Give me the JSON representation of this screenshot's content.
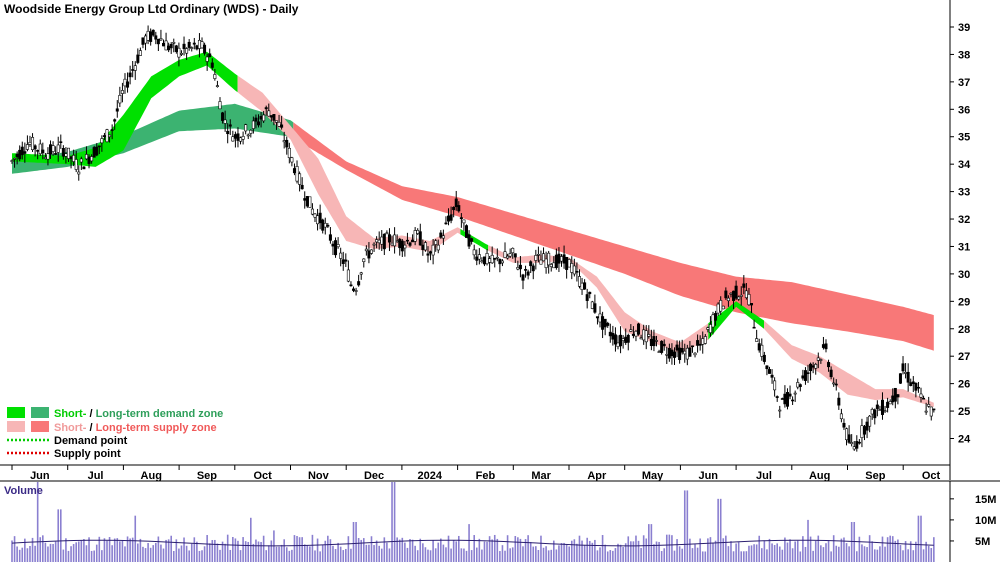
{
  "chart_data": {
    "type": "candlestick",
    "title": "Woodside Energy Group Ltd Ordinary (WDS) - Daily",
    "y_ticks": [
      24,
      25,
      26,
      27,
      28,
      29,
      30,
      31,
      32,
      33,
      34,
      35,
      36,
      37,
      38,
      39
    ],
    "ylim": [
      23.05,
      39.95
    ],
    "x_labels": [
      "Jun",
      "Jul",
      "Aug",
      "Sep",
      "Oct",
      "Nov",
      "Dec",
      "2024",
      "Feb",
      "Mar",
      "Apr",
      "May",
      "Jun",
      "Jul",
      "Aug",
      "Sep",
      "Oct"
    ],
    "x_range_months": [
      0,
      17
    ],
    "grid": false,
    "legend_position": "bottom-left",
    "legend": {
      "demand_zone": {
        "short_label": "Short-",
        "sep": " / ",
        "long_label": "Long-term demand zone",
        "short_color": "#00e000",
        "long_color": "#3cb371"
      },
      "supply_zone": {
        "short_label": "Short-",
        "sep": " / ",
        "long_label": "Long-term supply zone",
        "short_color": "#f7b6b6",
        "long_color": "#f87878"
      },
      "demand_point": {
        "label": "Demand point",
        "color": "#00cc00"
      },
      "supply_point": {
        "label": "Supply point",
        "color": "#e00000"
      }
    },
    "price_path": [
      [
        0,
        34.1
      ],
      [
        0.3,
        34.8
      ],
      [
        0.6,
        34.4
      ],
      [
        0.9,
        34.6
      ],
      [
        1.2,
        33.9
      ],
      [
        1.5,
        34.5
      ],
      [
        1.8,
        35.3
      ],
      [
        2.0,
        36.7
      ],
      [
        2.2,
        37.6
      ],
      [
        2.4,
        38.6
      ],
      [
        2.6,
        38.7
      ],
      [
        2.8,
        38.3
      ],
      [
        3.0,
        38.1
      ],
      [
        3.2,
        38.2
      ],
      [
        3.4,
        38.3
      ],
      [
        3.6,
        37.7
      ],
      [
        3.8,
        35.6
      ],
      [
        4.0,
        35.0
      ],
      [
        4.2,
        35.2
      ],
      [
        4.4,
        35.5
      ],
      [
        4.6,
        36.0
      ],
      [
        4.8,
        35.4
      ],
      [
        5.0,
        34.3
      ],
      [
        5.2,
        33.2
      ],
      [
        5.4,
        32.3
      ],
      [
        5.6,
        31.8
      ],
      [
        5.8,
        31.0
      ],
      [
        6.0,
        30.3
      ],
      [
        6.1,
        29.5
      ],
      [
        6.2,
        29.6
      ],
      [
        6.3,
        30.5
      ],
      [
        6.5,
        31.0
      ],
      [
        6.8,
        31.3
      ],
      [
        7.0,
        31.1
      ],
      [
        7.3,
        31.4
      ],
      [
        7.5,
        30.6
      ],
      [
        7.7,
        31.3
      ],
      [
        7.9,
        32.2
      ],
      [
        8.0,
        32.6
      ],
      [
        8.1,
        31.8
      ],
      [
        8.3,
        30.8
      ],
      [
        8.6,
        30.4
      ],
      [
        9.0,
        30.7
      ],
      [
        9.2,
        29.9
      ],
      [
        9.4,
        30.5
      ],
      [
        9.7,
        30.5
      ],
      [
        10.0,
        30.4
      ],
      [
        10.3,
        29.4
      ],
      [
        10.6,
        28.2
      ],
      [
        10.9,
        27.5
      ],
      [
        11.2,
        28.0
      ],
      [
        11.5,
        27.5
      ],
      [
        11.8,
        27.2
      ],
      [
        12.1,
        27.1
      ],
      [
        12.4,
        27.4
      ],
      [
        12.6,
        28.4
      ],
      [
        12.8,
        29.1
      ],
      [
        13.0,
        29.3
      ],
      [
        13.2,
        29.4
      ],
      [
        13.4,
        27.5
      ],
      [
        13.6,
        26.4
      ],
      [
        13.8,
        25.2
      ],
      [
        14.0,
        25.6
      ],
      [
        14.2,
        26.2
      ],
      [
        14.4,
        26.7
      ],
      [
        14.6,
        27.3
      ],
      [
        14.8,
        25.7
      ],
      [
        15.0,
        24.0
      ],
      [
        15.1,
        23.6
      ],
      [
        15.3,
        24.4
      ],
      [
        15.5,
        25.0
      ],
      [
        15.7,
        25.2
      ],
      [
        15.9,
        25.7
      ],
      [
        16.0,
        26.5
      ],
      [
        16.2,
        25.9
      ],
      [
        16.4,
        25.2
      ],
      [
        16.55,
        24.9
      ]
    ],
    "long_zone": {
      "x": [
        0,
        1,
        2,
        3,
        4,
        5,
        6,
        7,
        8,
        9,
        10,
        11,
        12,
        13,
        14,
        15,
        16,
        16.55
      ],
      "upper": [
        34.15,
        34.45,
        35.05,
        35.95,
        36.2,
        35.6,
        34.1,
        33.2,
        32.8,
        32.2,
        31.6,
        31.0,
        30.4,
        29.9,
        29.7,
        29.25,
        28.8,
        28.5
      ],
      "lower": [
        33.65,
        33.9,
        34.4,
        35.2,
        35.3,
        35.0,
        33.8,
        32.7,
        32.1,
        31.4,
        30.7,
        30.0,
        29.2,
        28.6,
        28.2,
        27.9,
        27.55,
        27.2
      ],
      "status": [
        "demand",
        "demand",
        "demand",
        "demand",
        "demand",
        "supply",
        "supply",
        "supply",
        "supply",
        "supply",
        "supply",
        "supply",
        "supply",
        "supply",
        "supply",
        "supply",
        "supply",
        "supply"
      ]
    },
    "short_zone": {
      "x": [
        0,
        1,
        1.5,
        2,
        2.5,
        3,
        3.5,
        4,
        4.5,
        5,
        5.5,
        6,
        6.5,
        7,
        7.5,
        8,
        8.5,
        9,
        9.5,
        10,
        10.5,
        11,
        11.5,
        12,
        12.5,
        13,
        13.5,
        14,
        14.5,
        15,
        15.5,
        16,
        16.55
      ],
      "upper": [
        34.4,
        34.3,
        34.6,
        35.8,
        37.2,
        37.8,
        38.1,
        37.3,
        36.6,
        35.4,
        34.2,
        32.1,
        31.3,
        31.4,
        31.2,
        31.7,
        31.1,
        30.6,
        30.7,
        30.6,
        29.9,
        28.6,
        27.9,
        27.5,
        28.2,
        29.0,
        28.3,
        27.4,
        27.0,
        26.4,
        25.8,
        25.8,
        25.3
      ],
      "lower": [
        34.1,
        34.0,
        33.9,
        34.5,
        36.4,
        37.2,
        37.6,
        36.7,
        35.9,
        34.9,
        32.9,
        31.2,
        30.9,
        31.0,
        30.8,
        31.5,
        30.9,
        30.4,
        30.4,
        30.5,
        29.5,
        27.9,
        27.5,
        27.1,
        27.6,
        28.8,
        28.0,
        26.9,
        26.4,
        25.6,
        25.4,
        25.5,
        25.15
      ],
      "status": [
        "demand",
        "demand",
        "demand",
        "demand",
        "demand",
        "demand",
        "demand",
        "supply",
        "supply",
        "supply",
        "supply",
        "supply",
        "supply",
        "supply",
        "supply",
        "demand",
        "supply",
        "supply",
        "supply",
        "supply",
        "supply",
        "supply",
        "supply",
        "supply",
        "demand",
        "demand",
        "supply",
        "supply",
        "supply",
        "supply",
        "supply",
        "supply",
        "supply"
      ]
    }
  },
  "volume_chart": {
    "title": "Volume",
    "y_ticks": [
      5000000,
      10000000,
      15000000
    ],
    "y_tick_labels": [
      "5M",
      "10M",
      "15M"
    ],
    "ylim": [
      0,
      19000000
    ],
    "typical_volume": 4500000,
    "spikes": [
      [
        0.45,
        19000000
      ],
      [
        0.85,
        12500000
      ],
      [
        2.2,
        11000000
      ],
      [
        4.3,
        10500000
      ],
      [
        4.7,
        7500000
      ],
      [
        6.15,
        9500000
      ],
      [
        6.85,
        19000000
      ],
      [
        8.2,
        9000000
      ],
      [
        11.45,
        9000000
      ],
      [
        12.1,
        17000000
      ],
      [
        12.7,
        15000000
      ],
      [
        14.3,
        10000000
      ],
      [
        15.1,
        9500000
      ],
      [
        16.3,
        11000000
      ]
    ]
  }
}
